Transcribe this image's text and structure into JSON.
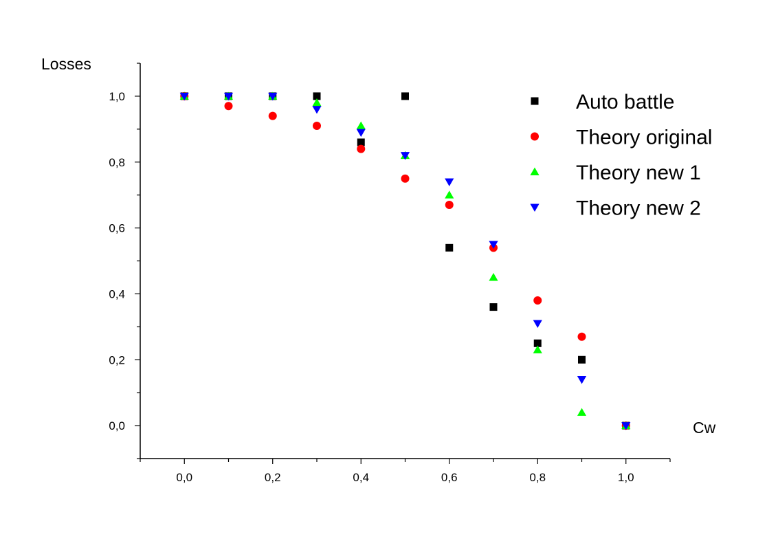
{
  "chart_data": {
    "type": "scatter",
    "xlabel": "Cw",
    "ylabel": "Losses",
    "xlim": [
      -0.1,
      1.1
    ],
    "ylim": [
      -0.1,
      1.1
    ],
    "x_ticks": [
      0.0,
      0.2,
      0.4,
      0.6,
      0.8,
      1.0
    ],
    "y_ticks": [
      0.0,
      0.2,
      0.4,
      0.6,
      0.8,
      1.0
    ],
    "x_tick_labels": [
      "0,0",
      "0,2",
      "0,4",
      "0,6",
      "0,8",
      "1,0"
    ],
    "y_tick_labels": [
      "0,0",
      "0,2",
      "0,4",
      "0,6",
      "0,8",
      "1,0"
    ],
    "grid": false,
    "legend_position": "top-right",
    "x": [
      0.0,
      0.1,
      0.2,
      0.3,
      0.4,
      0.5,
      0.6,
      0.7,
      0.8,
      0.9,
      1.0
    ],
    "series": [
      {
        "name": "Auto battle",
        "marker": "square",
        "color": "#000000",
        "values": [
          1.0,
          1.0,
          1.0,
          1.0,
          0.86,
          1.0,
          0.54,
          0.36,
          0.25,
          0.2,
          0.0
        ]
      },
      {
        "name": "Theory original",
        "marker": "circle",
        "color": "#ff0000",
        "values": [
          1.0,
          0.97,
          0.94,
          0.91,
          0.84,
          0.75,
          0.67,
          0.54,
          0.38,
          0.27,
          0.0
        ]
      },
      {
        "name": "Theory new 1",
        "marker": "triangle-up",
        "color": "#00ff00",
        "values": [
          1.0,
          1.0,
          1.0,
          0.98,
          0.91,
          0.82,
          0.7,
          0.45,
          0.23,
          0.04,
          0.0
        ]
      },
      {
        "name": "Theory new 2",
        "marker": "triangle-down",
        "color": "#0000ff",
        "values": [
          1.0,
          1.0,
          1.0,
          0.96,
          0.89,
          0.82,
          0.74,
          0.55,
          0.31,
          0.14,
          0.0
        ]
      }
    ]
  }
}
